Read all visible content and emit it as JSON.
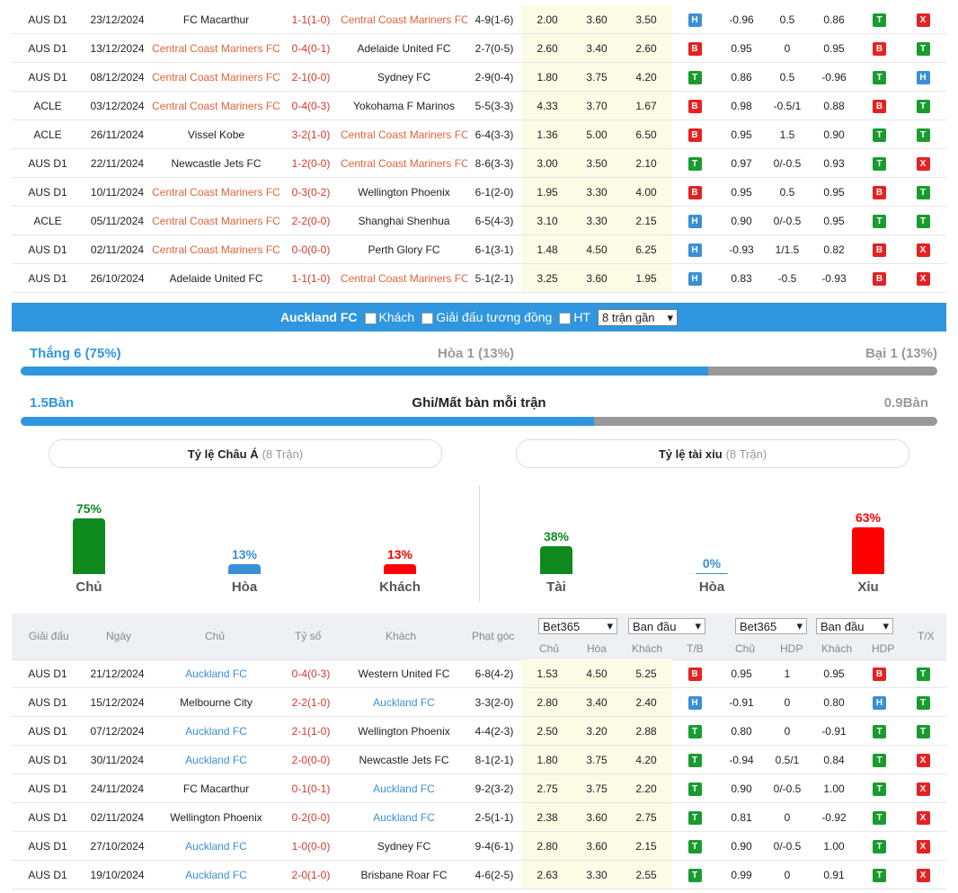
{
  "top_rows": [
    {
      "league": "AUS D1",
      "date": "23/12/2024",
      "home": "FC Macarthur",
      "home_hl": false,
      "score": "1-1(1-0)",
      "away": "Central Coast Mariners FC",
      "away_hl": true,
      "corner": "4-9(1-6)",
      "o1": "2.00",
      "o2": "3.60",
      "o3": "3.50",
      "r1": "H",
      "h1": "-0.96",
      "h2": "0.5",
      "h3": "0.86",
      "r2": "T",
      "r3": "X"
    },
    {
      "league": "AUS D1",
      "date": "13/12/2024",
      "home": "Central Coast Mariners FC",
      "home_hl": true,
      "score": "0-4(0-1)",
      "away": "Adelaide United FC",
      "away_hl": false,
      "corner": "2-7(0-5)",
      "o1": "2.60",
      "o2": "3.40",
      "o3": "2.60",
      "r1": "B",
      "h1": "0.95",
      "h2": "0",
      "h3": "0.95",
      "r2": "B",
      "r3": "T"
    },
    {
      "league": "AUS D1",
      "date": "08/12/2024",
      "home": "Central Coast Mariners FC",
      "home_hl": true,
      "score": "2-1(0-0)",
      "away": "Sydney FC",
      "away_hl": false,
      "corner": "2-9(0-4)",
      "o1": "1.80",
      "o2": "3.75",
      "o3": "4.20",
      "r1": "T",
      "h1": "0.86",
      "h2": "0.5",
      "h3": "-0.96",
      "r2": "T",
      "r3": "H"
    },
    {
      "league": "ACLE",
      "date": "03/12/2024",
      "home": "Central Coast Mariners FC",
      "home_hl": true,
      "score": "0-4(0-3)",
      "away": "Yokohama F Marinos",
      "away_hl": false,
      "corner": "5-5(3-3)",
      "o1": "4.33",
      "o2": "3.70",
      "o3": "1.67",
      "r1": "B",
      "h1": "0.98",
      "h2": "-0.5/1",
      "h3": "0.88",
      "r2": "B",
      "r3": "T"
    },
    {
      "league": "ACLE",
      "date": "26/11/2024",
      "home": "Vissel Kobe",
      "home_hl": false,
      "score": "3-2(1-0)",
      "away": "Central Coast Mariners FC",
      "away_hl": true,
      "corner": "6-4(3-3)",
      "o1": "1.36",
      "o2": "5.00",
      "o3": "6.50",
      "r1": "B",
      "h1": "0.95",
      "h2": "1.5",
      "h3": "0.90",
      "r2": "T",
      "r3": "T"
    },
    {
      "league": "AUS D1",
      "date": "22/11/2024",
      "home": "Newcastle Jets FC",
      "home_hl": false,
      "score": "1-2(0-0)",
      "away": "Central Coast Mariners FC",
      "away_hl": true,
      "corner": "8-6(3-3)",
      "o1": "3.00",
      "o2": "3.50",
      "o3": "2.10",
      "r1": "T",
      "h1": "0.97",
      "h2": "0/-0.5",
      "h3": "0.93",
      "r2": "T",
      "r3": "X"
    },
    {
      "league": "AUS D1",
      "date": "10/11/2024",
      "home": "Central Coast Mariners FC",
      "home_hl": true,
      "score": "0-3(0-2)",
      "away": "Wellington Phoenix",
      "away_hl": false,
      "corner": "6-1(2-0)",
      "o1": "1.95",
      "o2": "3.30",
      "o3": "4.00",
      "r1": "B",
      "h1": "0.95",
      "h2": "0.5",
      "h3": "0.95",
      "r2": "B",
      "r3": "T"
    },
    {
      "league": "ACLE",
      "date": "05/11/2024",
      "home": "Central Coast Mariners FC",
      "home_hl": true,
      "score": "2-2(0-0)",
      "away": "Shanghai Shenhua",
      "away_hl": false,
      "corner": "6-5(4-3)",
      "o1": "3.10",
      "o2": "3.30",
      "o3": "2.15",
      "r1": "H",
      "h1": "0.90",
      "h2": "0/-0.5",
      "h3": "0.95",
      "r2": "T",
      "r3": "T"
    },
    {
      "league": "AUS D1",
      "date": "02/11/2024",
      "home": "Central Coast Mariners FC",
      "home_hl": true,
      "score": "0-0(0-0)",
      "away": "Perth Glory FC",
      "away_hl": false,
      "corner": "6-1(3-1)",
      "o1": "1.48",
      "o2": "4.50",
      "o3": "6.25",
      "r1": "H",
      "h1": "-0.93",
      "h2": "1/1.5",
      "h3": "0.82",
      "r2": "B",
      "r3": "X"
    },
    {
      "league": "AUS D1",
      "date": "26/10/2024",
      "home": "Adelaide United FC",
      "home_hl": false,
      "score": "1-1(1-0)",
      "away": "Central Coast Mariners FC",
      "away_hl": true,
      "corner": "5-1(2-1)",
      "o1": "3.25",
      "o2": "3.60",
      "o3": "1.95",
      "r1": "H",
      "h1": "0.83",
      "h2": "-0.5",
      "h3": "-0.93",
      "r2": "B",
      "r3": "X"
    }
  ],
  "filter_bar": {
    "team": "Auckland FC",
    "away_label": "Khách",
    "same_league_label": "Giải đấu tương đồng",
    "ht_label": "HT",
    "recent_select": "8 trận gần",
    "chevron": "chevron-down-icon"
  },
  "summary": {
    "win": "Thắng 6 (75%)",
    "draw": "Hòa 1 (13%)",
    "loss": "Bại 1 (13%)",
    "win_share": 0.75,
    "goals_for": "1.5Bàn",
    "goals_title": "Ghi/Mất bàn mỗi trận",
    "goals_against": "0.9Bàn",
    "goals_share": 0.625
  },
  "asian": {
    "title": "Tỷ lệ Châu Á",
    "count": "(8 Trận)",
    "items": [
      {
        "label": "Chủ",
        "pct": "75%",
        "value": 75,
        "color": "#0e8a1e"
      },
      {
        "label": "Hòa",
        "pct": "13%",
        "value": 13,
        "color": "#3a8fd6"
      },
      {
        "label": "Khách",
        "pct": "13%",
        "value": 13,
        "color": "#ff0000"
      }
    ]
  },
  "overunder": {
    "title": "Tỷ lệ tài xỉu",
    "count": "(8 Trận)",
    "items": [
      {
        "label": "Tài",
        "pct": "38%",
        "value": 38,
        "color": "#0e8a1e"
      },
      {
        "label": "Hòa",
        "pct": "0%",
        "value": 0,
        "color": "#3a8fd6"
      },
      {
        "label": "Xỉu",
        "pct": "63%",
        "value": 63,
        "color": "#ff0000"
      }
    ]
  },
  "header": {
    "league": "Giải đấu",
    "date": "Ngày",
    "home": "Chủ",
    "score": "Tỷ số",
    "away": "Khách",
    "corner": "Phạt góc",
    "sel1": "Bet365",
    "sel2": "Ban đầu",
    "sel3": "Bet365",
    "sel4": "Ban đầu",
    "o_home": "Chủ",
    "o_draw": "Hòa",
    "o_away": "Khách",
    "o_tb": "T/B",
    "h_home": "Chủ",
    "h_hdp": "HDP",
    "h_away": "Khách",
    "h_hdp2": "HDP",
    "tx": "T/X"
  },
  "bottom_rows": [
    {
      "league": "AUS D1",
      "date": "21/12/2024",
      "home": "Auckland FC",
      "home_hl": true,
      "score": "0-4(0-3)",
      "away": "Western United FC",
      "away_hl": false,
      "corner": "6-8(4-2)",
      "o1": "1.53",
      "o2": "4.50",
      "o3": "5.25",
      "r1": "B",
      "h1": "0.95",
      "h2": "1",
      "h3": "0.95",
      "r2": "B",
      "r3": "T"
    },
    {
      "league": "AUS D1",
      "date": "15/12/2024",
      "home": "Melbourne City",
      "home_hl": false,
      "score": "2-2(1-0)",
      "away": "Auckland FC",
      "away_hl": true,
      "corner": "3-3(2-0)",
      "o1": "2.80",
      "o2": "3.40",
      "o3": "2.40",
      "r1": "H",
      "h1": "-0.91",
      "h2": "0",
      "h3": "0.80",
      "r2": "H",
      "r3": "T"
    },
    {
      "league": "AUS D1",
      "date": "07/12/2024",
      "home": "Auckland FC",
      "home_hl": true,
      "score": "2-1(1-0)",
      "away": "Wellington Phoenix",
      "away_hl": false,
      "corner": "4-4(2-3)",
      "o1": "2.50",
      "o2": "3.20",
      "o3": "2.88",
      "r1": "T",
      "h1": "0.80",
      "h2": "0",
      "h3": "-0.91",
      "r2": "T",
      "r3": "T"
    },
    {
      "league": "AUS D1",
      "date": "30/11/2024",
      "home": "Auckland FC",
      "home_hl": true,
      "score": "2-0(0-0)",
      "away": "Newcastle Jets FC",
      "away_hl": false,
      "corner": "8-1(2-1)",
      "o1": "1.80",
      "o2": "3.75",
      "o3": "4.20",
      "r1": "T",
      "h1": "-0.94",
      "h2": "0.5/1",
      "h3": "0.84",
      "r2": "T",
      "r3": "X"
    },
    {
      "league": "AUS D1",
      "date": "24/11/2024",
      "home": "FC Macarthur",
      "home_hl": false,
      "score": "0-1(0-1)",
      "away": "Auckland FC",
      "away_hl": true,
      "corner": "9-2(3-2)",
      "o1": "2.75",
      "o2": "3.75",
      "o3": "2.20",
      "r1": "T",
      "h1": "0.90",
      "h2": "0/-0.5",
      "h3": "1.00",
      "r2": "T",
      "r3": "X"
    },
    {
      "league": "AUS D1",
      "date": "02/11/2024",
      "home": "Wellington Phoenix",
      "home_hl": false,
      "score": "0-2(0-0)",
      "away": "Auckland FC",
      "away_hl": true,
      "corner": "2-5(1-1)",
      "o1": "2.38",
      "o2": "3.60",
      "o3": "2.75",
      "r1": "T",
      "h1": "0.81",
      "h2": "0",
      "h3": "-0.92",
      "r2": "T",
      "r3": "X"
    },
    {
      "league": "AUS D1",
      "date": "27/10/2024",
      "home": "Auckland FC",
      "home_hl": true,
      "score": "1-0(0-0)",
      "away": "Sydney FC",
      "away_hl": false,
      "corner": "9-4(6-1)",
      "o1": "2.80",
      "o2": "3.60",
      "o3": "2.15",
      "r1": "T",
      "h1": "0.90",
      "h2": "0/-0.5",
      "h3": "1.00",
      "r2": "T",
      "r3": "X"
    },
    {
      "league": "AUS D1",
      "date": "19/10/2024",
      "home": "Auckland FC",
      "home_hl": true,
      "score": "2-0(1-0)",
      "away": "Brisbane Roar FC",
      "away_hl": false,
      "corner": "4-6(2-5)",
      "o1": "2.63",
      "o2": "3.30",
      "o3": "2.55",
      "r1": "T",
      "h1": "0.99",
      "h2": "0",
      "h3": "0.91",
      "r2": "T",
      "r3": "X"
    }
  ]
}
